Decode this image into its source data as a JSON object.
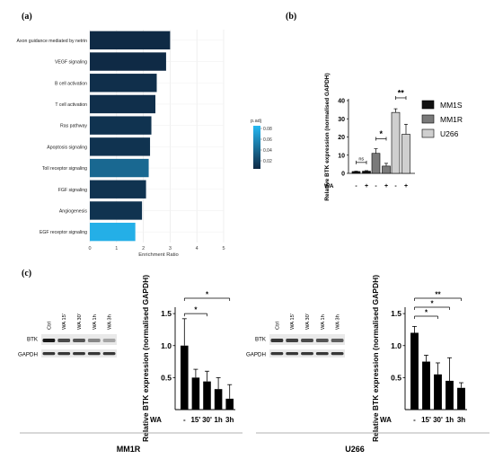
{
  "panels": {
    "a": "(a)",
    "b": "(b)",
    "c": "(c)"
  },
  "chart_data": [
    {
      "id": "a",
      "type": "bar",
      "orientation": "horizontal",
      "categories": [
        "Axon guidance mediated by netrin",
        "VEGF signaling",
        "B cell activation",
        "T cell activation",
        "Ras pathway",
        "Apoptosis signaling",
        "Toll receptor signaling",
        "FGF signaling",
        "Angiogenesis",
        "EGF receptor signaling"
      ],
      "values": [
        3.0,
        2.85,
        2.5,
        2.45,
        2.3,
        2.25,
        2.2,
        2.1,
        1.95,
        1.7
      ],
      "padj": [
        0.005,
        0.005,
        0.008,
        0.008,
        0.01,
        0.01,
        0.04,
        0.01,
        0.01,
        0.08
      ],
      "xlabel": "Enrichment Ratio",
      "xlim": [
        0,
        5
      ],
      "xticks": [
        "0",
        "1",
        "2",
        "3",
        "4",
        "5"
      ],
      "grid": true,
      "legend": {
        "title": "p.adj",
        "ticks": [
          "0.08",
          "0.06",
          "0.04",
          "0.02"
        ],
        "range": [
          0.005,
          0.085
        ],
        "placement": "right"
      },
      "colors": {
        "low": "#0f2a45",
        "high": "#25b8f2"
      }
    },
    {
      "id": "b",
      "type": "bar",
      "ylabel": "Relative BTK expression (normalised GAPDH)",
      "ylim": [
        0,
        40
      ],
      "yticks": [
        "0",
        "10",
        "20",
        "30",
        "40"
      ],
      "xlabel": "WA",
      "groups": [
        {
          "name": "MM1S",
          "color": "#111111",
          "values": [
            1.0,
            1.2
          ],
          "errors": [
            0.2,
            0.3
          ]
        },
        {
          "name": "MM1R",
          "color": "#7a7a7a",
          "values": [
            11.0,
            4.0
          ],
          "errors": [
            2.5,
            1.5
          ]
        },
        {
          "name": "U266",
          "color": "#cfcfcf",
          "values": [
            33.5,
            21.5
          ],
          "errors": [
            2.0,
            5.5
          ]
        }
      ],
      "conditions": [
        "-",
        "+"
      ],
      "significance": [
        "ns",
        "*",
        "**"
      ],
      "legend_placement": "right"
    },
    {
      "id": "c1",
      "type": "bar",
      "ylabel": "Relative BTK expression (normalised GAPDH)",
      "ylim": [
        0,
        1.6
      ],
      "yticks": [
        "0.5",
        "1.0",
        "1.5"
      ],
      "xlabel": "WA",
      "categories": [
        "-",
        "15'",
        "30'",
        "1h",
        "3h"
      ],
      "values": [
        1.0,
        0.5,
        0.44,
        0.32,
        0.17
      ],
      "errors": [
        0.42,
        0.13,
        0.16,
        0.18,
        0.22
      ],
      "significance": [
        "*",
        "*"
      ],
      "blot": {
        "lanes": [
          "Ctrl",
          "WA 15'",
          "WA 30'",
          "WA 1h",
          "WA 3h"
        ],
        "rows": [
          "BTK",
          "GAPDH"
        ],
        "btk_intensity": [
          1.0,
          0.75,
          0.7,
          0.45,
          0.3
        ]
      },
      "caption": "MM1R"
    },
    {
      "id": "c2",
      "type": "bar",
      "ylabel": "Relative BTK expression (normalised GAPDH)",
      "ylim": [
        0,
        1.6
      ],
      "yticks": [
        "0.5",
        "1.0",
        "1.5"
      ],
      "xlabel": "WA",
      "categories": [
        "-",
        "15'",
        "30'",
        "1h",
        "3h"
      ],
      "values": [
        1.2,
        0.75,
        0.55,
        0.45,
        0.34
      ],
      "errors": [
        0.1,
        0.1,
        0.18,
        0.36,
        0.08
      ],
      "significance": [
        "**",
        "*",
        "*"
      ],
      "blot": {
        "lanes": [
          "Ctrl",
          "WA 15'",
          "WA 30'",
          "WA 1h",
          "WA 3h"
        ],
        "rows": [
          "BTK",
          "GAPDH"
        ],
        "btk_intensity": [
          0.85,
          0.8,
          0.75,
          0.7,
          0.65
        ]
      },
      "caption": "U266"
    }
  ]
}
